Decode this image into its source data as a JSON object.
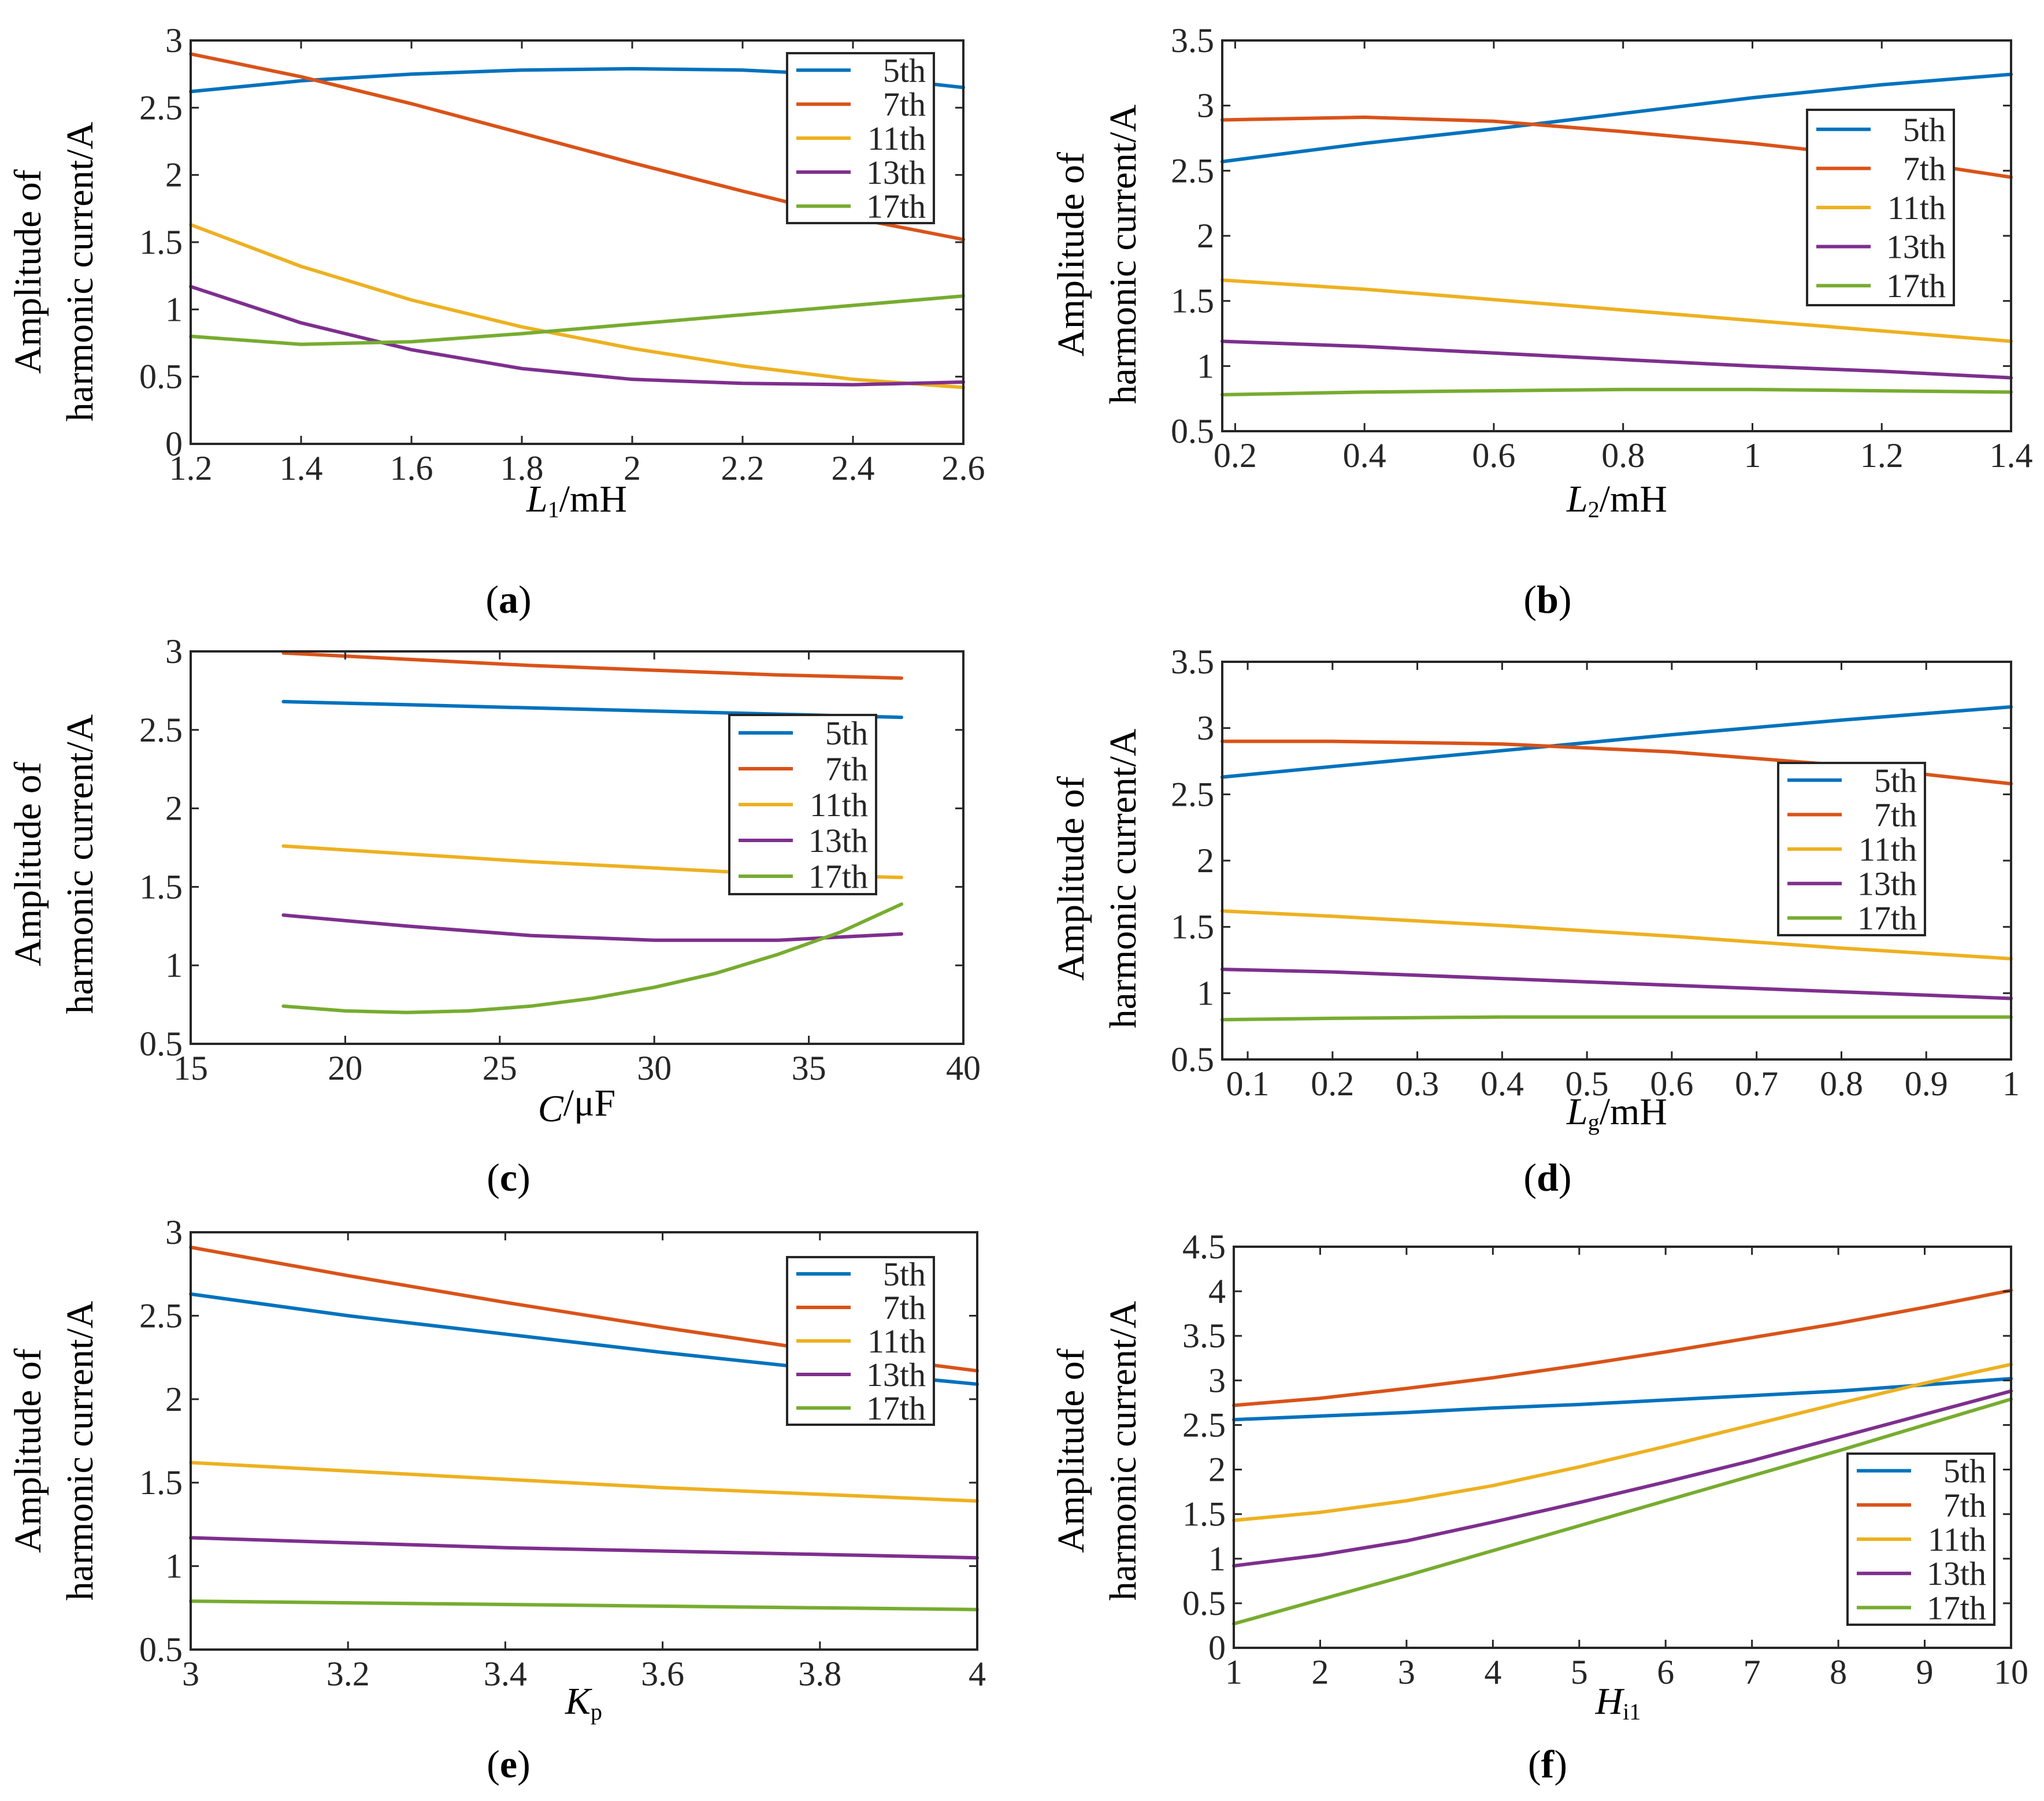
{
  "colors": {
    "5th": "#0072BD",
    "7th": "#D95319",
    "11th": "#EDB120",
    "13th": "#7E2F8E",
    "17th": "#77AC30",
    "axis": "#262626"
  },
  "chart_data": [
    {
      "type": "line",
      "panel_label": "(a)",
      "ylabel_line1": "Amplitude of",
      "ylabel_line2": "harmonic current/A",
      "xlabel_symbol": "L",
      "xlabel_sub": "1",
      "xlabel_unit": "/mH",
      "xlim": [
        1.2,
        2.6
      ],
      "ylim": [
        0,
        3
      ],
      "xticks": [
        1.2,
        1.4,
        1.6,
        1.8,
        2,
        2.2,
        2.4,
        2.6
      ],
      "xtick_labels": [
        "1.2",
        "1.4",
        "1.6",
        "1.8",
        "2",
        "2.2",
        "2.4",
        "2.6"
      ],
      "yticks": [
        0,
        0.5,
        1,
        1.5,
        2,
        2.5,
        3
      ],
      "ytick_labels": [
        "0",
        "0.5",
        "1",
        "1.5",
        "2",
        "2.5",
        "3"
      ],
      "legend_position": "top-right",
      "series": [
        {
          "name": "5th",
          "color_key": "5th",
          "x": [
            1.2,
            1.4,
            1.6,
            1.8,
            2.0,
            2.2,
            2.4,
            2.6
          ],
          "y": [
            2.62,
            2.7,
            2.75,
            2.78,
            2.79,
            2.78,
            2.74,
            2.65
          ]
        },
        {
          "name": "7th",
          "color_key": "7th",
          "x": [
            1.2,
            1.4,
            1.6,
            1.8,
            2.0,
            2.2,
            2.4,
            2.6
          ],
          "y": [
            2.9,
            2.73,
            2.53,
            2.31,
            2.09,
            1.88,
            1.68,
            1.52
          ]
        },
        {
          "name": "11th",
          "color_key": "11th",
          "x": [
            1.2,
            1.4,
            1.6,
            1.8,
            2.0,
            2.2,
            2.4,
            2.6
          ],
          "y": [
            1.63,
            1.32,
            1.07,
            0.87,
            0.71,
            0.58,
            0.48,
            0.42
          ]
        },
        {
          "name": "13th",
          "color_key": "13th",
          "x": [
            1.2,
            1.4,
            1.6,
            1.8,
            2.0,
            2.2,
            2.4,
            2.6
          ],
          "y": [
            1.17,
            0.9,
            0.7,
            0.56,
            0.48,
            0.45,
            0.44,
            0.46
          ]
        },
        {
          "name": "17th",
          "color_key": "17th",
          "x": [
            1.2,
            1.4,
            1.6,
            1.8,
            2.0,
            2.2,
            2.4,
            2.6
          ],
          "y": [
            0.8,
            0.74,
            0.76,
            0.82,
            0.89,
            0.96,
            1.03,
            1.1
          ]
        }
      ]
    },
    {
      "type": "line",
      "panel_label": "(b)",
      "ylabel_line1": "Amplitude of",
      "ylabel_line2": "harmonic current/A",
      "xlabel_symbol": "L",
      "xlabel_sub": "2",
      "xlabel_unit": "/mH",
      "xlim": [
        0.18,
        1.4
      ],
      "ylim": [
        0.5,
        3.5
      ],
      "xticks": [
        0.2,
        0.4,
        0.6,
        0.8,
        1,
        1.2,
        1.4
      ],
      "xtick_labels": [
        "0.2",
        "0.4",
        "0.6",
        "0.8",
        "1",
        "1.2",
        "1.4"
      ],
      "yticks": [
        0.5,
        1,
        1.5,
        2,
        2.5,
        3,
        3.5
      ],
      "ytick_labels": [
        "0.5",
        "1",
        "1.5",
        "2",
        "2.5",
        "3",
        "3.5"
      ],
      "legend_position": "right",
      "series": [
        {
          "name": "5th",
          "color_key": "5th",
          "x": [
            0.18,
            0.4,
            0.6,
            0.8,
            1.0,
            1.2,
            1.4
          ],
          "y": [
            2.57,
            2.71,
            2.82,
            2.94,
            3.06,
            3.16,
            3.24
          ]
        },
        {
          "name": "7th",
          "color_key": "7th",
          "x": [
            0.18,
            0.4,
            0.6,
            0.8,
            1.0,
            1.2,
            1.4
          ],
          "y": [
            2.89,
            2.91,
            2.88,
            2.8,
            2.71,
            2.6,
            2.45
          ]
        },
        {
          "name": "11th",
          "color_key": "11th",
          "x": [
            0.18,
            0.4,
            0.6,
            0.8,
            1.0,
            1.2,
            1.4
          ],
          "y": [
            1.66,
            1.59,
            1.51,
            1.43,
            1.35,
            1.27,
            1.19
          ]
        },
        {
          "name": "13th",
          "color_key": "13th",
          "x": [
            0.18,
            0.4,
            0.6,
            0.8,
            1.0,
            1.2,
            1.4
          ],
          "y": [
            1.19,
            1.15,
            1.1,
            1.05,
            1.0,
            0.96,
            0.91
          ]
        },
        {
          "name": "17th",
          "color_key": "17th",
          "x": [
            0.18,
            0.4,
            0.6,
            0.8,
            1.0,
            1.2,
            1.4
          ],
          "y": [
            0.78,
            0.8,
            0.81,
            0.82,
            0.82,
            0.81,
            0.8
          ]
        }
      ]
    },
    {
      "type": "line",
      "panel_label": "(c)",
      "ylabel_line1": "Amplitude of",
      "ylabel_line2": "harmonic current/A",
      "xlabel_symbol": "C",
      "xlabel_sub": "",
      "xlabel_unit": "/μF",
      "xlim": [
        15,
        40
      ],
      "ylim": [
        0.5,
        3
      ],
      "xticks": [
        15,
        20,
        25,
        30,
        35,
        40
      ],
      "xtick_labels": [
        "15",
        "20",
        "25",
        "30",
        "35",
        "40"
      ],
      "yticks": [
        0.5,
        1,
        1.5,
        2,
        2.5,
        3
      ],
      "ytick_labels": [
        "0.5",
        "1",
        "1.5",
        "2",
        "2.5",
        "3"
      ],
      "legend_position": "right",
      "series": [
        {
          "name": "5th",
          "color_key": "5th",
          "x": [
            18,
            22,
            26,
            30,
            34,
            38
          ],
          "y": [
            2.68,
            2.66,
            2.64,
            2.62,
            2.6,
            2.58
          ]
        },
        {
          "name": "7th",
          "color_key": "7th",
          "x": [
            18,
            22,
            26,
            30,
            34,
            38
          ],
          "y": [
            2.99,
            2.95,
            2.91,
            2.88,
            2.85,
            2.83
          ]
        },
        {
          "name": "11th",
          "color_key": "11th",
          "x": [
            18,
            22,
            26,
            30,
            34,
            38
          ],
          "y": [
            1.76,
            1.71,
            1.66,
            1.62,
            1.58,
            1.56
          ]
        },
        {
          "name": "13th",
          "color_key": "13th",
          "x": [
            18,
            22,
            26,
            30,
            34,
            38
          ],
          "y": [
            1.32,
            1.25,
            1.19,
            1.16,
            1.16,
            1.2
          ]
        },
        {
          "name": "17th",
          "color_key": "17th",
          "x": [
            18,
            20,
            22,
            24,
            26,
            28,
            30,
            32,
            34,
            36,
            38
          ],
          "y": [
            0.74,
            0.71,
            0.7,
            0.71,
            0.74,
            0.79,
            0.86,
            0.95,
            1.07,
            1.21,
            1.39
          ]
        }
      ]
    },
    {
      "type": "line",
      "panel_label": "(d)",
      "ylabel_line1": "Amplitude of",
      "ylabel_line2": "harmonic current/A",
      "xlabel_symbol": "L",
      "xlabel_sub": "g",
      "xlabel_unit": "/mH",
      "xlim": [
        0.07,
        1
      ],
      "ylim": [
        0.5,
        3.5
      ],
      "xticks": [
        0.1,
        0.2,
        0.3,
        0.4,
        0.5,
        0.6,
        0.7,
        0.8,
        0.9,
        1
      ],
      "xtick_labels": [
        "0.1",
        "0.2",
        "0.3",
        "0.4",
        "0.5",
        "0.6",
        "0.7",
        "0.8",
        "0.9",
        "1"
      ],
      "yticks": [
        0.5,
        1,
        1.5,
        2,
        2.5,
        3,
        3.5
      ],
      "ytick_labels": [
        "0.5",
        "1",
        "1.5",
        "2",
        "2.5",
        "3",
        "3.5"
      ],
      "legend_position": "right",
      "series": [
        {
          "name": "5th",
          "color_key": "5th",
          "x": [
            0.07,
            0.2,
            0.4,
            0.6,
            0.8,
            1.0
          ],
          "y": [
            2.63,
            2.71,
            2.83,
            2.95,
            3.06,
            3.16
          ]
        },
        {
          "name": "7th",
          "color_key": "7th",
          "x": [
            0.07,
            0.2,
            0.4,
            0.6,
            0.8,
            1.0
          ],
          "y": [
            2.9,
            2.9,
            2.88,
            2.82,
            2.72,
            2.58
          ]
        },
        {
          "name": "11th",
          "color_key": "11th",
          "x": [
            0.07,
            0.2,
            0.4,
            0.6,
            0.8,
            1.0
          ],
          "y": [
            1.62,
            1.58,
            1.51,
            1.43,
            1.34,
            1.26
          ]
        },
        {
          "name": "13th",
          "color_key": "13th",
          "x": [
            0.07,
            0.2,
            0.4,
            0.6,
            0.8,
            1.0
          ],
          "y": [
            1.18,
            1.16,
            1.11,
            1.06,
            1.01,
            0.96
          ]
        },
        {
          "name": "17th",
          "color_key": "17th",
          "x": [
            0.07,
            0.2,
            0.4,
            0.6,
            0.8,
            1.0
          ],
          "y": [
            0.8,
            0.81,
            0.82,
            0.82,
            0.82,
            0.82
          ]
        }
      ]
    },
    {
      "type": "line",
      "panel_label": "(e)",
      "ylabel_line1": "Amplitude of",
      "ylabel_line2": "harmonic current/A",
      "xlabel_symbol": "K",
      "xlabel_sub": "p",
      "xlabel_unit": "",
      "xlim": [
        3,
        4
      ],
      "ylim": [
        0.5,
        3
      ],
      "xticks": [
        3,
        3.2,
        3.4,
        3.6,
        3.8,
        4
      ],
      "xtick_labels": [
        "3",
        "3.2",
        "3.4",
        "3.6",
        "3.8",
        "4"
      ],
      "yticks": [
        0.5,
        1,
        1.5,
        2,
        2.5,
        3
      ],
      "ytick_labels": [
        "0.5",
        "1",
        "1.5",
        "2",
        "2.5",
        "3"
      ],
      "legend_position": "top-right",
      "series": [
        {
          "name": "5th",
          "color_key": "5th",
          "x": [
            3.0,
            3.2,
            3.4,
            3.6,
            3.8,
            4.0
          ],
          "y": [
            2.63,
            2.5,
            2.39,
            2.28,
            2.18,
            2.09
          ]
        },
        {
          "name": "7th",
          "color_key": "7th",
          "x": [
            3.0,
            3.2,
            3.4,
            3.6,
            3.8,
            4.0
          ],
          "y": [
            2.91,
            2.74,
            2.58,
            2.43,
            2.29,
            2.17
          ]
        },
        {
          "name": "11th",
          "color_key": "11th",
          "x": [
            3.0,
            3.2,
            3.4,
            3.6,
            3.8,
            4.0
          ],
          "y": [
            1.62,
            1.57,
            1.52,
            1.47,
            1.43,
            1.39
          ]
        },
        {
          "name": "13th",
          "color_key": "13th",
          "x": [
            3.0,
            3.2,
            3.4,
            3.6,
            3.8,
            4.0
          ],
          "y": [
            1.17,
            1.14,
            1.11,
            1.09,
            1.07,
            1.05
          ]
        },
        {
          "name": "17th",
          "color_key": "17th",
          "x": [
            3.0,
            3.2,
            3.4,
            3.6,
            3.8,
            4.0
          ],
          "y": [
            0.79,
            0.78,
            0.77,
            0.76,
            0.75,
            0.74
          ]
        }
      ]
    },
    {
      "type": "line",
      "panel_label": "(f)",
      "ylabel_line1": "Amplitude of",
      "ylabel_line2": "harmonic current/A",
      "xlabel_symbol": "H",
      "xlabel_sub": "i1",
      "xlabel_unit": "",
      "xlim": [
        1,
        10
      ],
      "ylim": [
        0,
        4.5
      ],
      "xticks": [
        1,
        2,
        3,
        4,
        5,
        6,
        7,
        8,
        9,
        10
      ],
      "xtick_labels": [
        "1",
        "2",
        "3",
        "4",
        "5",
        "6",
        "7",
        "8",
        "9",
        "10"
      ],
      "yticks": [
        0,
        0.5,
        1,
        1.5,
        2,
        2.5,
        3,
        3.5,
        4,
        4.5
      ],
      "ytick_labels": [
        "0",
        "0.5",
        "1",
        "1.5",
        "2",
        "2.5",
        "3",
        "3.5",
        "4",
        "4.5"
      ],
      "legend_position": "bottom-right",
      "series": [
        {
          "name": "5th",
          "color_key": "5th",
          "x": [
            1,
            2,
            3,
            4,
            5,
            6,
            7,
            8,
            9,
            10
          ],
          "y": [
            2.56,
            2.6,
            2.64,
            2.69,
            2.73,
            2.78,
            2.83,
            2.88,
            2.95,
            3.02
          ]
        },
        {
          "name": "7th",
          "color_key": "7th",
          "x": [
            1,
            2,
            3,
            4,
            5,
            6,
            7,
            8,
            9,
            10
          ],
          "y": [
            2.72,
            2.8,
            2.91,
            3.03,
            3.17,
            3.32,
            3.48,
            3.64,
            3.82,
            4.01
          ]
        },
        {
          "name": "11th",
          "color_key": "11th",
          "x": [
            1,
            2,
            3,
            4,
            5,
            6,
            7,
            8,
            9,
            10
          ],
          "y": [
            1.43,
            1.52,
            1.65,
            1.82,
            2.03,
            2.26,
            2.5,
            2.74,
            2.97,
            3.18
          ]
        },
        {
          "name": "13th",
          "color_key": "13th",
          "x": [
            1,
            2,
            3,
            4,
            5,
            6,
            7,
            8,
            9,
            10
          ],
          "y": [
            0.92,
            1.04,
            1.2,
            1.41,
            1.63,
            1.86,
            2.1,
            2.36,
            2.62,
            2.88
          ]
        },
        {
          "name": "17th",
          "color_key": "17th",
          "x": [
            1,
            2,
            3,
            4,
            5,
            6,
            7,
            8,
            9,
            10
          ],
          "y": [
            0.27,
            0.54,
            0.81,
            1.09,
            1.37,
            1.65,
            1.93,
            2.21,
            2.5,
            2.79
          ]
        }
      ]
    }
  ]
}
